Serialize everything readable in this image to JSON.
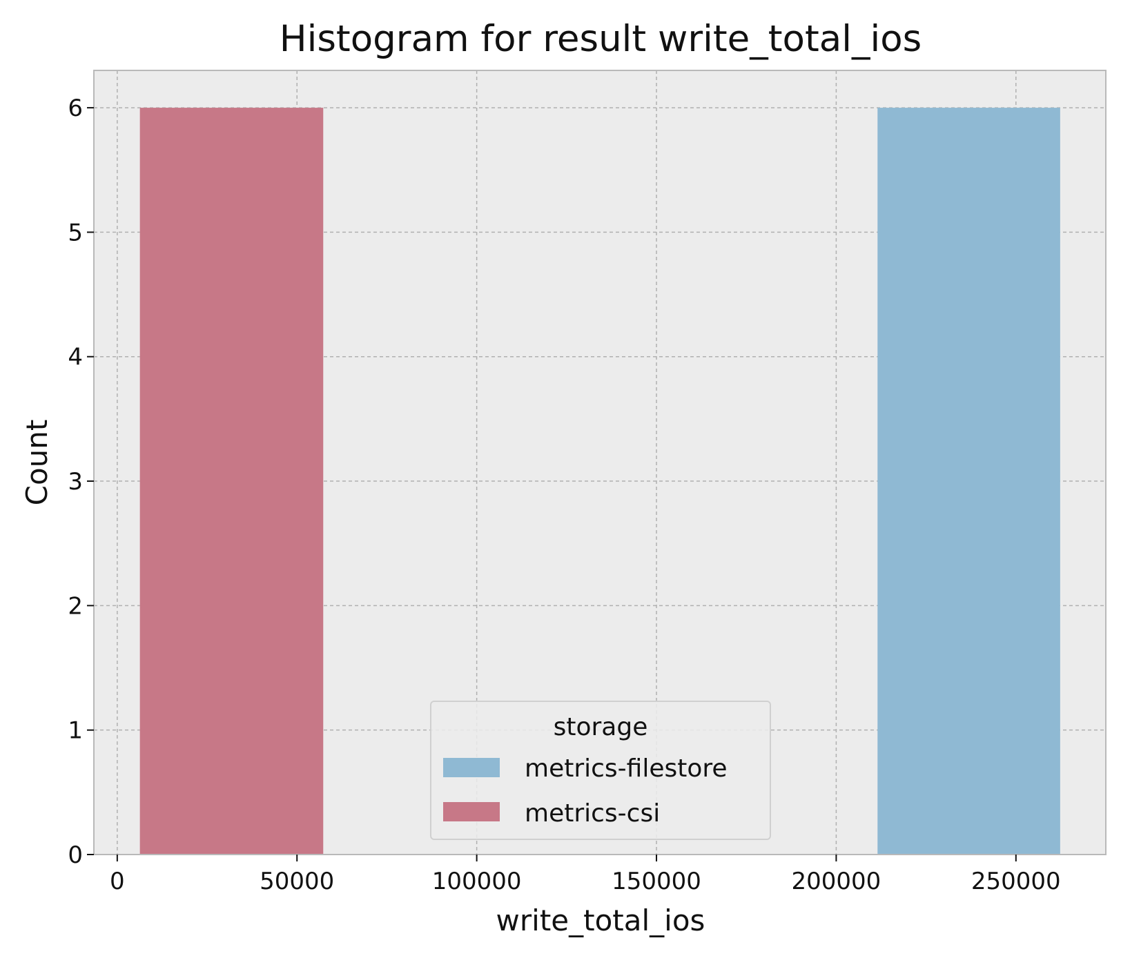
{
  "chart_data": {
    "type": "bar",
    "title": "Histogram for result write_total_ios",
    "xlabel": "write_total_ios",
    "ylabel": "Count",
    "xlim": [
      -6500,
      275000
    ],
    "ylim": [
      0,
      6.3
    ],
    "x_ticks": [
      0,
      50000,
      100000,
      150000,
      200000,
      250000
    ],
    "x_tick_labels": [
      "0",
      "50000",
      "100000",
      "150000",
      "200000",
      "250000"
    ],
    "y_ticks": [
      0,
      1,
      2,
      3,
      4,
      5,
      6
    ],
    "y_tick_labels": [
      "0",
      "1",
      "2",
      "3",
      "4",
      "5",
      "6"
    ],
    "grid": true,
    "legend_position": "bottom-center",
    "legend_title": "storage",
    "series": [
      {
        "name": "metrics-filestore",
        "color": "#8fb9d3",
        "bins": [
          {
            "start": 211500,
            "end": 262300,
            "count": 6
          }
        ]
      },
      {
        "name": "metrics-csi",
        "color": "#c77887",
        "bins": [
          {
            "start": 6300,
            "end": 57300,
            "count": 6
          }
        ]
      }
    ]
  }
}
